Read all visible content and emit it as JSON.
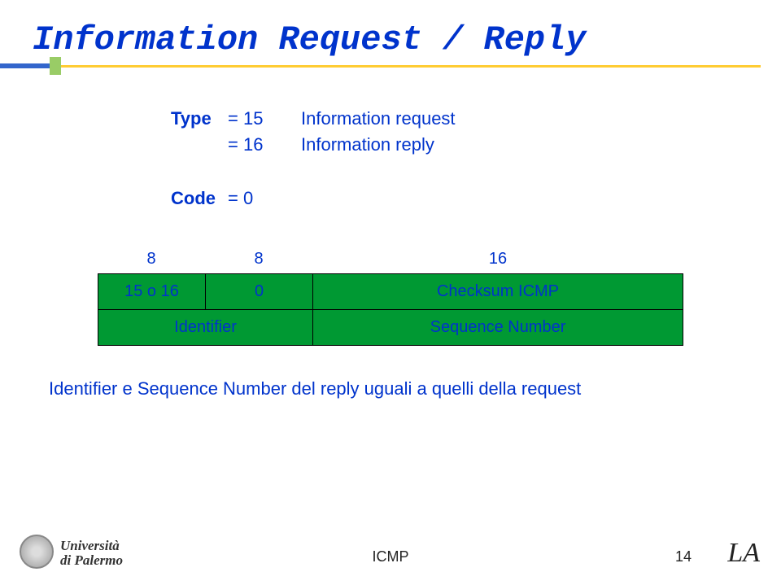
{
  "title": "Information Request / Reply",
  "type_section": {
    "label": "Type",
    "rows": [
      {
        "eq": "= 15",
        "desc": "Information request"
      },
      {
        "eq": "= 16",
        "desc": "Information reply"
      }
    ]
  },
  "code_section": {
    "label": "Code",
    "eq": "= 0"
  },
  "byte_widths": {
    "c1": "8",
    "c2": "8",
    "c3": "16"
  },
  "packet": {
    "row1": {
      "c1": "15 o 16",
      "c2": "0",
      "c3": "Checksum ICMP"
    },
    "row2": {
      "left": "Identifier",
      "right": "Sequence Number"
    }
  },
  "note": "Identifier e Sequence Number del reply uguali a quelli della request",
  "footer": {
    "uni1": "Università",
    "uni2": "di Palermo",
    "center": "ICMP",
    "page": "14",
    "la": "LA"
  },
  "colors": {
    "title": "#0033cc",
    "table_bg": "#009933",
    "accent_blue": "#3366cc",
    "accent_green": "#99cc66",
    "accent_yellow": "#ffcc33"
  }
}
